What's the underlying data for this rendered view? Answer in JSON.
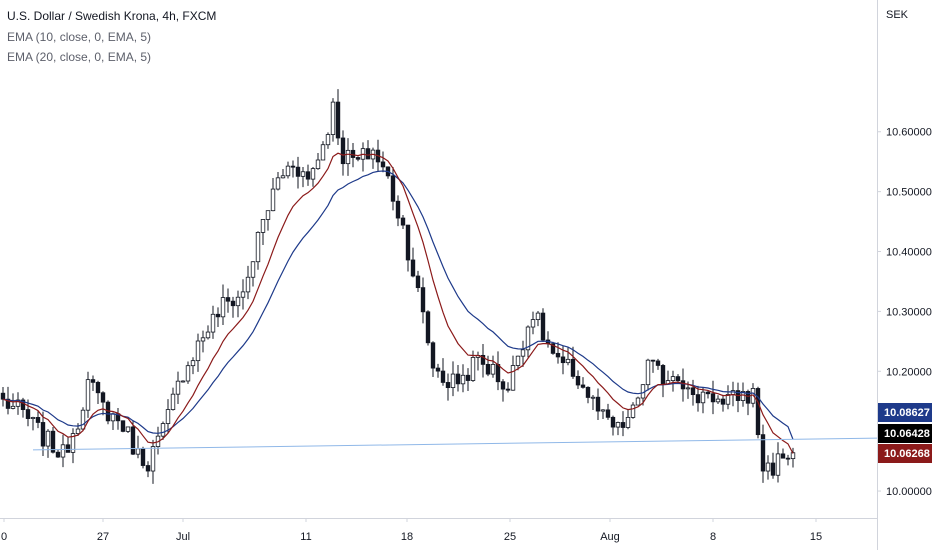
{
  "legend": {
    "symbol": "U.S. Dollar / Swedish Krona, 4h, FXCM",
    "ema1": "EMA (10, close, 0, EMA, 5)",
    "ema2": "EMA (20, close, 0, EMA, 5)"
  },
  "colors": {
    "candle": "#131722",
    "ema_fast": "#8b1a1a",
    "ema_slow": "#1e3a8a",
    "trendline": "#90b8e8",
    "badge_slow": "#1e3a8a",
    "badge_last": "#000000",
    "badge_fast": "#8b1a1a"
  },
  "chart_data": {
    "type": "candlestick",
    "currency": "SEK",
    "ylim": [
      9.955,
      10.82
    ],
    "y_ticks": [
      "10.60000",
      "10.50000",
      "10.40000",
      "10.30000",
      "10.20000",
      "10.10000",
      "10.00000"
    ],
    "x_ticks": [
      "0",
      "27",
      "Jul",
      "11",
      "18",
      "25",
      "Aug",
      "8",
      "15"
    ],
    "series": [
      {
        "name": "EMA (10, close, 0, EMA, 5)",
        "last": "10.06268"
      },
      {
        "name": "EMA (20, close, 0, EMA, 5)",
        "last": "10.08627"
      }
    ],
    "last_price": "10.06428",
    "close_path": [
      [
        0,
        10.15
      ],
      [
        4,
        10.13
      ],
      [
        8,
        10.09
      ],
      [
        12,
        10.06
      ],
      [
        15,
        10.12
      ],
      [
        17,
        10.18
      ],
      [
        20,
        10.14
      ],
      [
        24,
        10.11
      ],
      [
        27,
        10.06
      ],
      [
        29,
        10.05
      ],
      [
        32,
        10.1
      ],
      [
        36,
        10.2
      ],
      [
        40,
        10.26
      ],
      [
        44,
        10.31
      ],
      [
        48,
        10.33
      ],
      [
        52,
        10.45
      ],
      [
        55,
        10.52
      ],
      [
        58,
        10.55
      ],
      [
        61,
        10.52
      ],
      [
        64,
        10.58
      ],
      [
        66,
        10.64
      ],
      [
        68,
        10.56
      ],
      [
        71,
        10.55
      ],
      [
        74,
        10.57
      ],
      [
        77,
        10.52
      ],
      [
        80,
        10.44
      ],
      [
        83,
        10.33
      ],
      [
        86,
        10.21
      ],
      [
        89,
        10.18
      ],
      [
        92,
        10.19
      ],
      [
        95,
        10.22
      ],
      [
        98,
        10.2
      ],
      [
        101,
        10.17
      ],
      [
        103,
        10.23
      ],
      [
        106,
        10.3
      ],
      [
        108,
        10.26
      ],
      [
        111,
        10.21
      ],
      [
        114,
        10.2
      ],
      [
        117,
        10.16
      ],
      [
        120,
        10.12
      ],
      [
        123,
        10.1
      ],
      [
        126,
        10.13
      ],
      [
        129,
        10.21
      ],
      [
        132,
        10.19
      ],
      [
        135,
        10.2
      ],
      [
        138,
        10.15
      ],
      [
        141,
        10.17
      ],
      [
        144,
        10.14
      ],
      [
        147,
        10.16
      ],
      [
        150,
        10.16
      ],
      [
        152,
        10.04
      ],
      [
        154,
        10.04
      ],
      [
        156,
        10.06
      ],
      [
        158,
        10.064
      ]
    ],
    "trendline": [
      [
        0,
        10.068
      ],
      [
        172,
        10.088
      ]
    ]
  }
}
